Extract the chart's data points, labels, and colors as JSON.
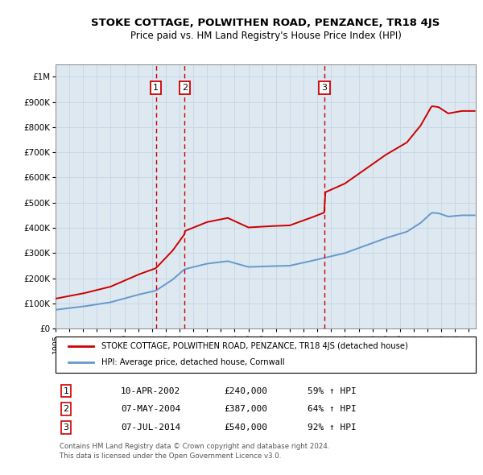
{
  "title": "STOKE COTTAGE, POLWITHEN ROAD, PENZANCE, TR18 4JS",
  "subtitle": "Price paid vs. HM Land Registry's House Price Index (HPI)",
  "sale_dates": [
    "2002-04-10",
    "2004-05-07",
    "2014-07-07"
  ],
  "sale_prices": [
    240000,
    387000,
    540000
  ],
  "sale_labels": [
    "1",
    "2",
    "3"
  ],
  "sale_t": [
    2002.28,
    2004.36,
    2014.52
  ],
  "sale_info": [
    {
      "num": "1",
      "date": "10-APR-2002",
      "price": "£240,000",
      "hpi": "59% ↑ HPI"
    },
    {
      "num": "2",
      "date": "07-MAY-2004",
      "price": "£387,000",
      "hpi": "64% ↑ HPI"
    },
    {
      "num": "3",
      "date": "07-JUL-2014",
      "price": "£540,000",
      "hpi": "92% ↑ HPI"
    }
  ],
  "legend_red": "STOKE COTTAGE, POLWITHEN ROAD, PENZANCE, TR18 4JS (detached house)",
  "legend_blue": "HPI: Average price, detached house, Cornwall",
  "footnote": "Contains HM Land Registry data © Crown copyright and database right 2024.\nThis data is licensed under the Open Government Licence v3.0.",
  "hpi_control_pts": [
    [
      1995.0,
      75000
    ],
    [
      1997.0,
      88000
    ],
    [
      1999.0,
      105000
    ],
    [
      2001.0,
      135000
    ],
    [
      2002.28,
      150943
    ],
    [
      2003.5,
      195000
    ],
    [
      2004.36,
      235976
    ],
    [
      2006.0,
      258000
    ],
    [
      2007.5,
      268000
    ],
    [
      2009.0,
      245000
    ],
    [
      2010.5,
      248000
    ],
    [
      2012.0,
      250000
    ],
    [
      2013.5,
      268000
    ],
    [
      2014.52,
      281250
    ],
    [
      2016.0,
      300000
    ],
    [
      2017.5,
      330000
    ],
    [
      2019.0,
      360000
    ],
    [
      2020.5,
      385000
    ],
    [
      2021.5,
      420000
    ],
    [
      2022.3,
      460000
    ],
    [
      2022.8,
      458000
    ],
    [
      2023.5,
      445000
    ],
    [
      2024.5,
      450000
    ]
  ],
  "ylim": [
    0,
    1050000
  ],
  "xlim": [
    1995,
    2025.5
  ],
  "yticks": [
    0,
    100000,
    200000,
    300000,
    400000,
    500000,
    600000,
    700000,
    800000,
    900000,
    1000000
  ],
  "ytick_labels": [
    "£0",
    "£100K",
    "£200K",
    "£300K",
    "£400K",
    "£500K",
    "£600K",
    "£700K",
    "£800K",
    "£900K",
    "£1M"
  ],
  "red_color": "#cc0000",
  "blue_color": "#6699cc",
  "bg_color": "#dde8f0",
  "grid_color": "#c8d8e8",
  "title_fontsize": 9.5,
  "subtitle_fontsize": 8.5
}
